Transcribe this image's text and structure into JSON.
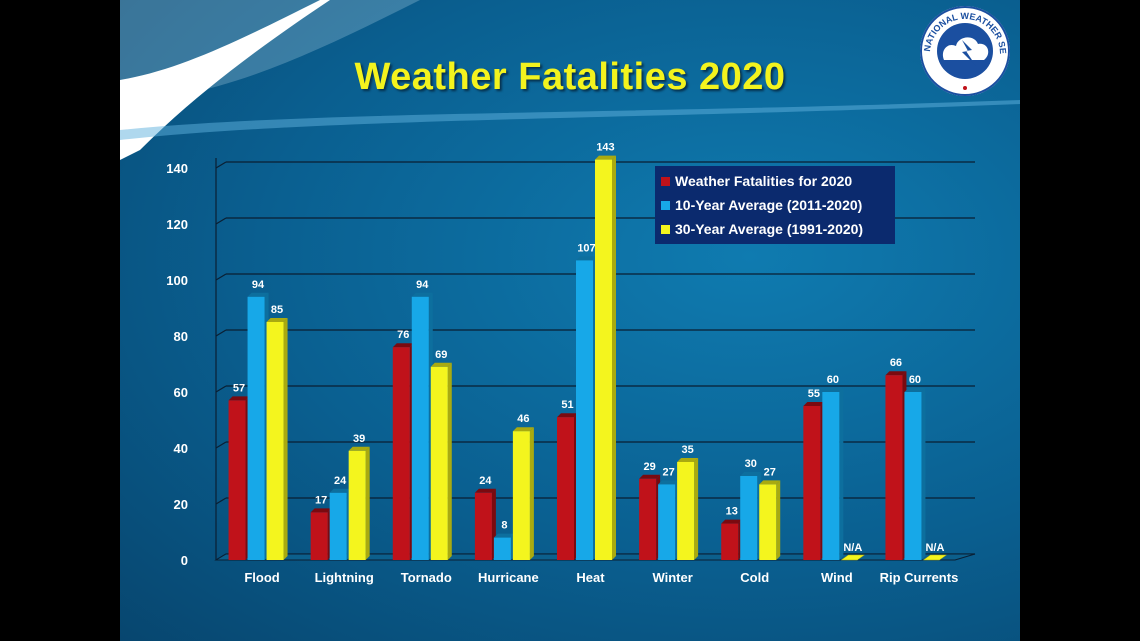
{
  "title": "Weather Fatalities 2020",
  "logo": {
    "text": "NATIONAL WEATHER SERVICE",
    "icon": "nws-logo-icon"
  },
  "colors": {
    "series1": "#c0121a",
    "series2": "#17a8e8",
    "series3": "#f4f51e",
    "grid": "#0a1f33",
    "text": "#ffffff",
    "title": "#f3f31e"
  },
  "chart_data": {
    "type": "bar",
    "title": "Weather Fatalities 2020",
    "categories": [
      "Flood",
      "Lightning",
      "Tornado",
      "Hurricane",
      "Heat",
      "Winter",
      "Cold",
      "Wind",
      "Rip Currents"
    ],
    "series": [
      {
        "name": "Weather Fatalities for 2020",
        "values": [
          57,
          17,
          76,
          24,
          51,
          29,
          13,
          55,
          66
        ]
      },
      {
        "name": "10-Year Average (2011-2020)",
        "values": [
          94,
          24,
          94,
          8,
          107,
          27,
          30,
          60,
          60
        ]
      },
      {
        "name": "30-Year Average (1991-2020)",
        "values": [
          85,
          39,
          69,
          46,
          143,
          35,
          27,
          null,
          null
        ]
      }
    ],
    "missing_label": "N/A",
    "ylim": [
      0,
      140
    ],
    "yticks": [
      0,
      20,
      40,
      60,
      80,
      100,
      120,
      140
    ],
    "grid": true,
    "legend_position": "top-right"
  }
}
